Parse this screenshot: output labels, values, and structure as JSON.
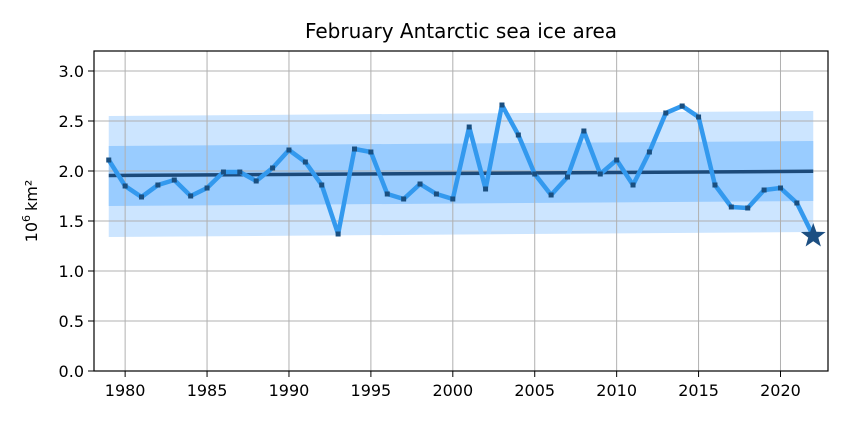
{
  "chart_data": {
    "type": "line",
    "title": "February Antarctic sea ice area",
    "ylabel_base": "10",
    "ylabel_exp": "6",
    "ylabel_unit": "km²",
    "xlim": [
      1978.1,
      2022.9
    ],
    "ylim": [
      0.0,
      3.2
    ],
    "xticks": [
      1980,
      1985,
      1990,
      1995,
      2000,
      2005,
      2010,
      2015,
      2020
    ],
    "yticks": [
      0.0,
      0.5,
      1.0,
      1.5,
      2.0,
      2.5,
      3.0
    ],
    "ytick_labels": [
      "0.0",
      "0.5",
      "1.0",
      "1.5",
      "2.0",
      "2.5",
      "3.0"
    ],
    "grid": true,
    "colors": {
      "series": "#3399ee",
      "markers": "#1a4f80",
      "trend": "#1c4a7a",
      "band_outer": "#cce5ff",
      "band_inner": "#99ccff",
      "star": "#1c4f82"
    },
    "series": [
      {
        "x": [
          1979,
          1980,
          1981,
          1982,
          1983,
          1984,
          1985,
          1986,
          1987,
          1988,
          1989,
          1990,
          1991,
          1992,
          1993,
          1994,
          1995,
          1996,
          1997,
          1998,
          1999,
          2000,
          2001,
          2002,
          2003,
          2004,
          2005,
          2006,
          2007,
          2008,
          2009,
          2010,
          2011,
          2012,
          2013,
          2014,
          2015,
          2016,
          2017,
          2018,
          2019,
          2020,
          2021,
          2022
        ],
        "values": [
          2.11,
          1.85,
          1.74,
          1.86,
          1.91,
          1.75,
          1.83,
          1.99,
          1.99,
          1.9,
          2.03,
          2.21,
          2.09,
          1.86,
          1.37,
          2.22,
          2.19,
          1.77,
          1.72,
          1.87,
          1.77,
          1.72,
          2.44,
          1.82,
          2.66,
          2.36,
          1.97,
          1.76,
          1.94,
          2.4,
          1.97,
          2.11,
          1.86,
          2.19,
          2.58,
          2.65,
          2.54,
          1.86,
          1.64,
          1.63,
          1.81,
          1.83,
          1.68,
          1.35
        ]
      }
    ],
    "trend": {
      "x": [
        1979,
        2022
      ],
      "values": [
        1.955,
        1.997
      ]
    },
    "bands": {
      "x": [
        1979,
        2022
      ],
      "outer_lower": [
        1.34,
        1.39
      ],
      "outer_upper": [
        2.55,
        2.6
      ],
      "inner_lower": [
        1.65,
        1.7
      ],
      "inner_upper": [
        2.25,
        2.3
      ]
    },
    "highlight": {
      "x": 2022,
      "value": 1.35,
      "marker": "star"
    }
  }
}
